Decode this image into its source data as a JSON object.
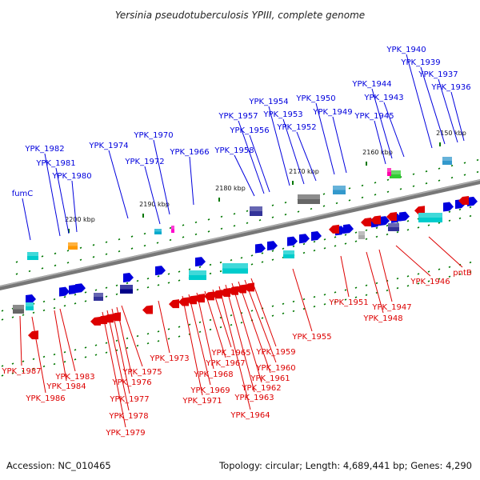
{
  "title": "Yersinia pseudotuberculosis YPIII, complete genome",
  "footer": {
    "accession": "Accession: NC_010465",
    "summary": "Topology: circular; Length: 4,689,441 bp; Genes: 4,290"
  },
  "colors": {
    "forward_strand": "#0000dd",
    "reverse_strand": "#dd0000",
    "axis": "#808080",
    "tick": "#007700"
  },
  "ticks": [
    "2200 kbp",
    "2190 kbp",
    "2180 kbp",
    "2170 kbp",
    "2160 kbp",
    "2150 kbp"
  ],
  "forward_genes": [
    "fumC",
    "YPK_1982",
    "YPK_1981",
    "YPK_1980",
    "YPK_1974",
    "YPK_1972",
    "YPK_1970",
    "YPK_1966",
    "YPK_1958",
    "YPK_1957",
    "YPK_1956",
    "YPK_1954",
    "YPK_1953",
    "YPK_1952",
    "YPK_1950",
    "YPK_1949",
    "YPK_1945",
    "YPK_1944",
    "YPK_1943",
    "YPK_1940",
    "YPK_1939",
    "YPK_1937",
    "YPK_1936"
  ],
  "reverse_genes": [
    "YPK_1987",
    "YPK_1986",
    "YPK_1984",
    "YPK_1983",
    "YPK_1979",
    "YPK_1978",
    "YPK_1977",
    "YPK_1976",
    "YPK_1975",
    "YPK_1973",
    "YPK_1971",
    "YPK_1969",
    "YPK_1968",
    "YPK_1967",
    "YPK_1965",
    "YPK_1964",
    "YPK_1963",
    "YPK_1962",
    "YPK_1961",
    "YPK_1960",
    "YPK_1959",
    "YPK_1955",
    "YPK_1951",
    "YPK_1948",
    "YPK_1947",
    "YPK_1946",
    "pntB"
  ]
}
